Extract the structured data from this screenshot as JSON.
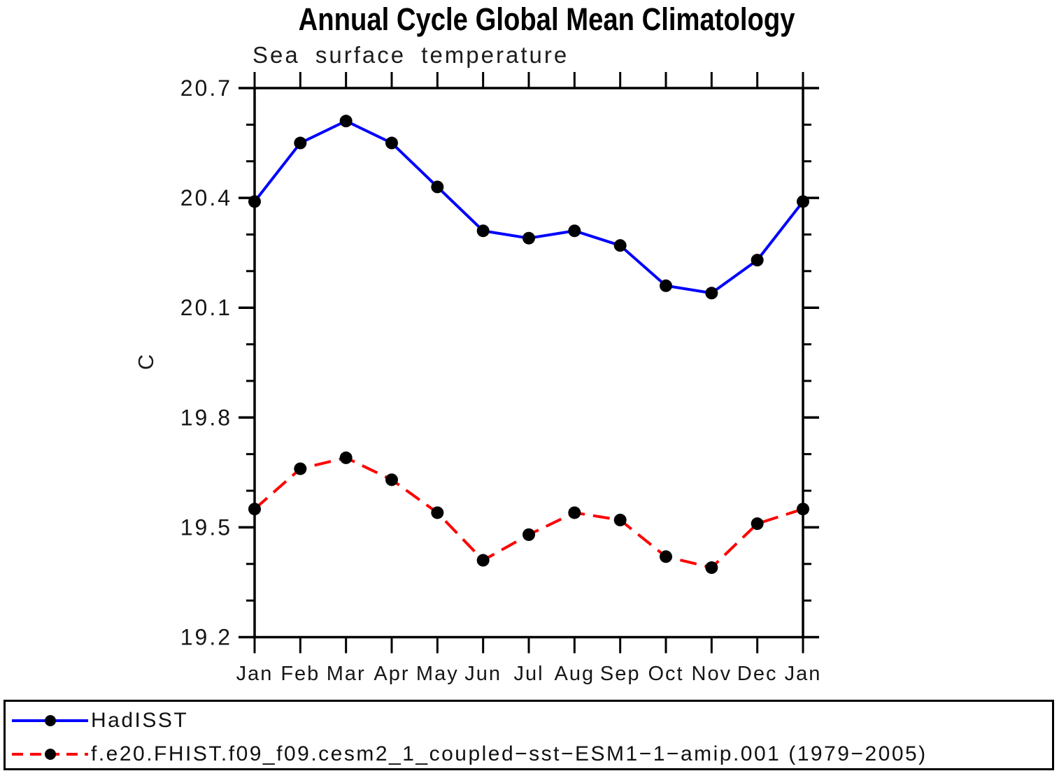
{
  "chart_data": {
    "type": "line",
    "title": "Annual Cycle Global Mean Climatology",
    "subtitle": "Sea surface temperature",
    "ylabel": "C",
    "categories": [
      "Jan",
      "Feb",
      "Mar",
      "Apr",
      "May",
      "Jun",
      "Jul",
      "Aug",
      "Sep",
      "Oct",
      "Nov",
      "Dec",
      "Jan"
    ],
    "ylim": [
      19.2,
      20.7
    ],
    "ytick_values": [
      19.2,
      19.5,
      19.8,
      20.1,
      20.4,
      20.7
    ],
    "ytick_labels": [
      "19.2",
      "19.5",
      "19.8",
      "20.1",
      "20.4",
      "20.7"
    ],
    "yminor_step": 0.1,
    "grid": false,
    "legend_position": "bottom",
    "axis_color": "#000000",
    "marker_color": "#000000",
    "series": [
      {
        "name": "HadISST",
        "color": "#0000ff",
        "style": "solid",
        "marker": "circle",
        "values": [
          20.39,
          20.55,
          20.61,
          20.55,
          20.43,
          20.31,
          20.29,
          20.31,
          20.27,
          20.16,
          20.14,
          20.23,
          20.39
        ]
      },
      {
        "name": "f.e20.FHIST.f09_f09.cesm2_1_coupled−sst−ESM1−1−amip.001 (1979−2005)",
        "color": "#ff0000",
        "style": "dashed",
        "marker": "circle",
        "values": [
          19.55,
          19.66,
          19.69,
          19.63,
          19.54,
          19.41,
          19.48,
          19.54,
          19.52,
          19.42,
          19.39,
          19.51,
          19.55
        ]
      }
    ]
  }
}
